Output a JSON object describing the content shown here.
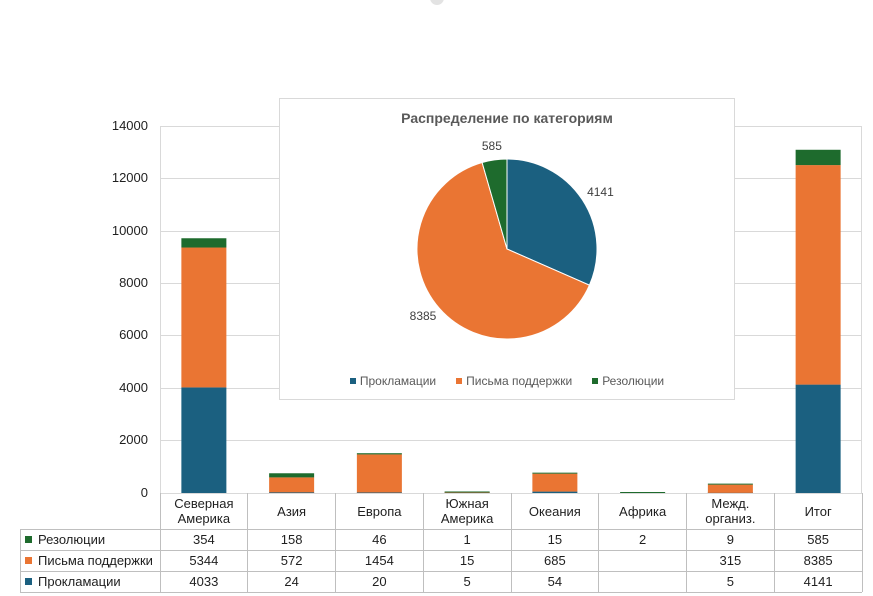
{
  "chart_data": [
    {
      "type": "bar",
      "stacked": true,
      "data_table": true,
      "gridlines": true,
      "categories": [
        "Северная Америка",
        "Азия",
        "Европа",
        "Южная Америка",
        "Океания",
        "Африка",
        "Межд. организ.",
        "Итог"
      ],
      "series": [
        {
          "name": "Прокламации",
          "color": "#1b6080",
          "values": [
            4033,
            24,
            20,
            5,
            54,
            null,
            5,
            4141
          ]
        },
        {
          "name": "Письма поддержки",
          "color": "#ea7533",
          "values": [
            5344,
            572,
            1454,
            15,
            685,
            null,
            315,
            8385
          ]
        },
        {
          "name": "Резолюции",
          "color": "#1e6b2d",
          "values": [
            354,
            158,
            46,
            1,
            15,
            2,
            9,
            585
          ]
        }
      ],
      "y_axis": {
        "min": 0,
        "max": 14000,
        "step": 2000,
        "tick_labels": [
          "0",
          "2000",
          "4000",
          "6000",
          "8000",
          "10000",
          "12000",
          "14000"
        ]
      }
    },
    {
      "type": "pie",
      "title": "Распределение по категориям",
      "legend_position": "bottom",
      "slices": [
        {
          "label": "Прокламации",
          "value": 4141,
          "color": "#1b6080"
        },
        {
          "label": "Письма поддержки",
          "value": 8385,
          "color": "#ea7533"
        },
        {
          "label": "Резолюции",
          "value": 585,
          "color": "#1e6b2d"
        }
      ]
    }
  ]
}
